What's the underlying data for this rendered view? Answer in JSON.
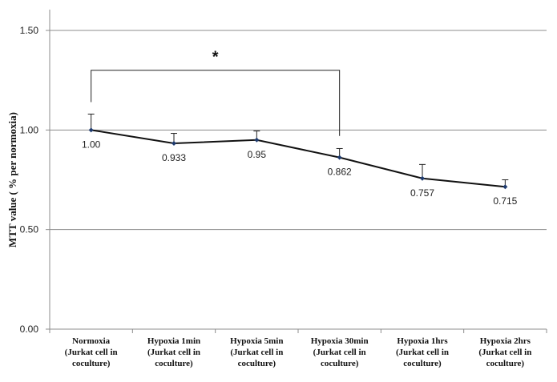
{
  "chart_data": {
    "type": "line",
    "title": "",
    "ylabel": "MTT value ( % per normoxia)",
    "xlabel": "",
    "ylim": [
      0,
      1.5
    ],
    "yticks": [
      "0.00",
      "0.50",
      "1.00",
      "1.50"
    ],
    "ytick_values": [
      0,
      0.5,
      1.0,
      1.5
    ],
    "grid": true,
    "categories": [
      [
        "Normoxia",
        "(Jurkat cell in",
        "coculture)"
      ],
      [
        "Hypoxia 1min",
        "(Jurkat cell in",
        "coculture)"
      ],
      [
        "Hypoxia 5min",
        "(Jurkat cell in",
        "coculture)"
      ],
      [
        "Hypoxia 30min",
        "(Jurkat cell in",
        "coculture)"
      ],
      [
        "Hypoxia 1hrs",
        "(Jurkat cell in",
        "coculture)"
      ],
      [
        "Hypoxia 2hrs",
        "(Jurkat cell in",
        "coculture)"
      ]
    ],
    "series": [
      {
        "values": [
          1.0,
          0.933,
          0.95,
          0.862,
          0.757,
          0.715
        ],
        "labels": [
          "1.00",
          "0.933",
          "0.95",
          "0.862",
          "0.757",
          "0.715"
        ],
        "error_upper": [
          0.08,
          0.05,
          0.045,
          0.045,
          0.07,
          0.035
        ]
      }
    ],
    "significance": {
      "from_index": 0,
      "to_index": 3,
      "marker": "*"
    }
  }
}
